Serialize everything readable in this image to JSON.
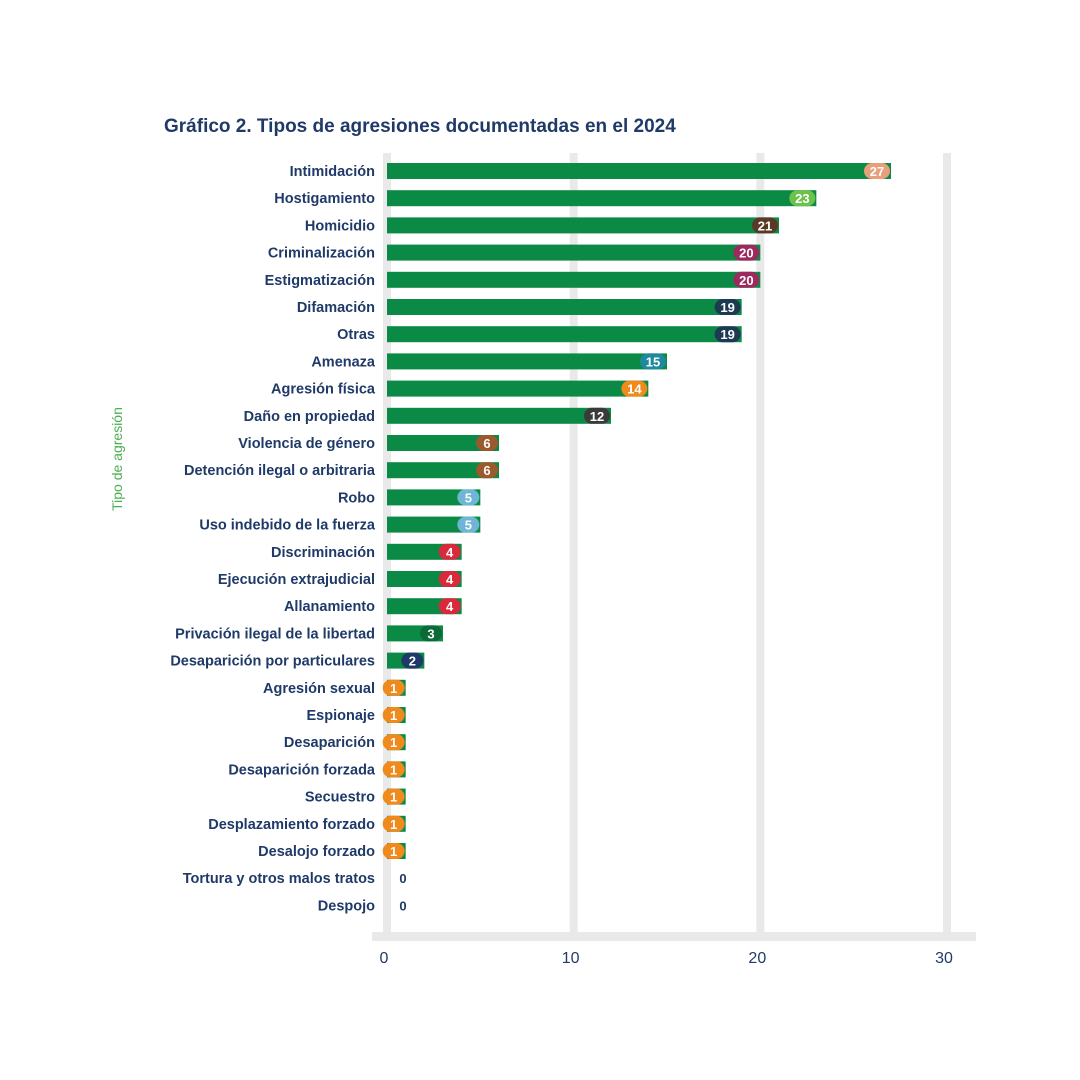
{
  "chart_data": {
    "type": "bar",
    "orientation": "horizontal",
    "title": "Gráfico 2. Tipos de agresiones documentadas en el 2024",
    "ylabel": "Tipo de agresión",
    "xlabel": "",
    "xlim": [
      0,
      30
    ],
    "xticks": [
      0,
      10,
      20,
      30
    ],
    "grid": true,
    "bar_color": "#0a8a45",
    "categories": [
      "Intimidación",
      "Hostigamiento",
      "Homicidio",
      "Criminalización",
      "Estigmatización",
      "Difamación",
      "Otras",
      "Amenaza",
      "Agresión física",
      "Daño en propiedad",
      "Violencia de género",
      "Detención ilegal o arbitraria",
      "Robo",
      "Uso indebido de la fuerza",
      "Discriminación",
      "Ejecución extrajudicial",
      "Allanamiento",
      "Privación ilegal de la libertad",
      "Desaparición por particulares",
      "Agresión sexual",
      "Espionaje",
      "Desaparición",
      "Desaparición forzada",
      "Secuestro",
      "Desplazamiento forzado",
      "Desalojo forzado",
      "Tortura y otros malos tratos",
      "Despojo"
    ],
    "values": [
      27,
      23,
      21,
      20,
      20,
      19,
      19,
      15,
      14,
      12,
      6,
      6,
      5,
      5,
      4,
      4,
      4,
      3,
      2,
      1,
      1,
      1,
      1,
      1,
      1,
      1,
      0,
      0
    ],
    "label_colors": [
      "#e8a07c",
      "#6cc24a",
      "#5a3a26",
      "#9b2a5e",
      "#9b2a5e",
      "#1d3a52",
      "#1d3a52",
      "#1f8a9e",
      "#f08a1c",
      "#3a3a3a",
      "#9a5a2e",
      "#9a5a2e",
      "#6fb5d6",
      "#6fb5d6",
      "#d92a3c",
      "#d92a3c",
      "#d92a3c",
      "#0b6b36",
      "#1f3a68",
      "#f08a1c",
      "#f08a1c",
      "#f08a1c",
      "#f08a1c",
      "#f08a1c",
      "#f08a1c",
      "#f08a1c",
      "#ffffff",
      "#ffffff"
    ]
  }
}
